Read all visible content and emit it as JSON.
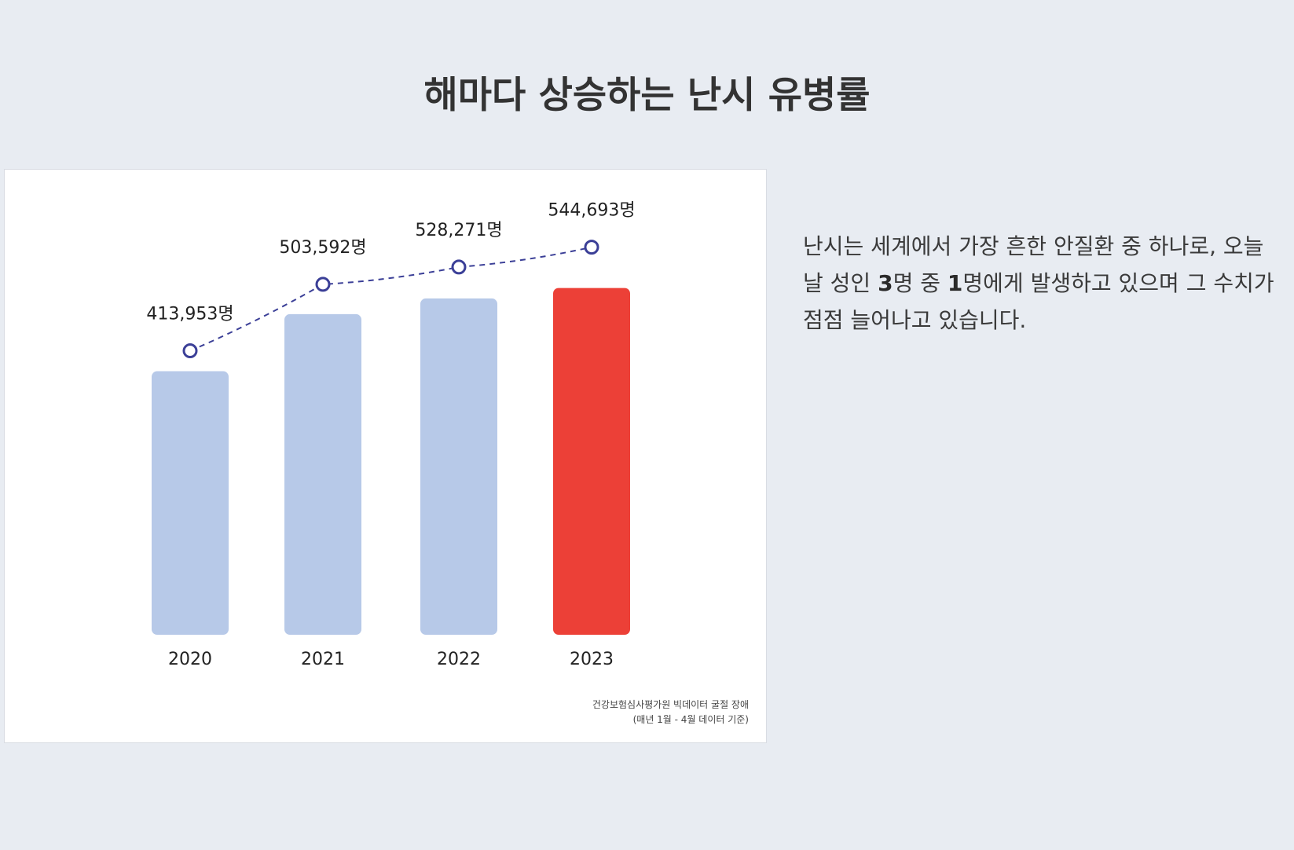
{
  "page": {
    "title": "해마다 상승하는 난시 유병률"
  },
  "description": {
    "part1": "난시는 세계에서 가장 흔한 안질환 중 하나로, 오늘날 성인 ",
    "bold1": "3",
    "part2": "명 중 ",
    "bold2": "1",
    "part3": "명에게 발생하고 있으며 그 수치가 점점 늘어나고 있습니다."
  },
  "chart_data": {
    "type": "bar",
    "title": "",
    "xlabel": "",
    "ylabel": "",
    "categories": [
      "2020",
      "2021",
      "2022",
      "2023"
    ],
    "values": [
      413953,
      503592,
      528271,
      544693
    ],
    "value_labels": [
      "413,953명",
      "503,592명",
      "528,271명",
      "544,693명"
    ],
    "unit": "명",
    "ylim": [
      0,
      580000
    ],
    "grid": false,
    "colors": {
      "bar": "#b7c9e8",
      "highlight_bar": "#ec4037",
      "trend_line": "#3b3f97",
      "marker_fill": "#ffffff"
    },
    "highlight_index": 3,
    "trend_line": "dashed",
    "source_line1": "건강보험심사평가원 빅데이터 굴절 장애",
    "source_line2": "(매년 1월 - 4월 데이터 기준)"
  }
}
